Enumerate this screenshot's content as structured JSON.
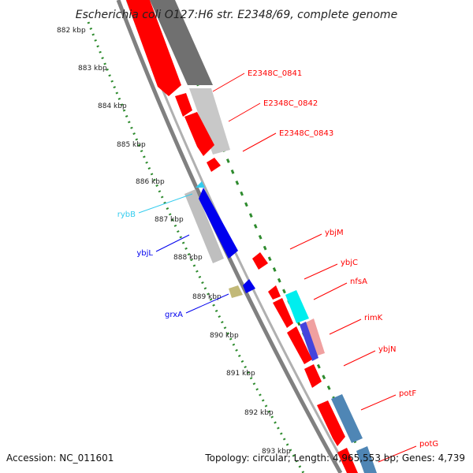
{
  "title": "Escherichia coli O127:H6 str. E2348/69, complete genome",
  "footer": {
    "accession": "Accession: NC_011601",
    "summary": "Topology: circular; Length: 4,965,553 bp; Genes: 4,739"
  },
  "colors": {
    "forward_cds": "#ff0000",
    "reverse_cds": "#0000ee",
    "ncrna": "#33ccee",
    "backbone": "#808080",
    "tick": "#2e8b2e",
    "grey_block": "#bfbfbf",
    "dark_grey_block": "#707070",
    "steel_block": "#4f86b5",
    "cyan_block": "#00eeee",
    "olive_block": "#c2b978"
  },
  "ruler": [
    {
      "label": "882 kbp",
      "kbp": 882
    },
    {
      "label": "883 kbp",
      "kbp": 883
    },
    {
      "label": "884 kbp",
      "kbp": 884
    },
    {
      "label": "885 kbp",
      "kbp": 885
    },
    {
      "label": "886 kbp",
      "kbp": 886
    },
    {
      "label": "887 kbp",
      "kbp": 887
    },
    {
      "label": "888 kbp",
      "kbp": 888
    },
    {
      "label": "889 kbp",
      "kbp": 889
    },
    {
      "label": "890 kbp",
      "kbp": 890
    },
    {
      "label": "891 kbp",
      "kbp": 891
    },
    {
      "label": "892 kbp",
      "kbp": 892
    },
    {
      "label": "893 kbp",
      "kbp": 893
    }
  ],
  "gene_labels": [
    {
      "name": "E2348C_0841",
      "strand": "forward"
    },
    {
      "name": "E2348C_0842",
      "strand": "forward"
    },
    {
      "name": "E2348C_0843",
      "strand": "forward"
    },
    {
      "name": "rybB",
      "strand": "ncrna"
    },
    {
      "name": "ybjL",
      "strand": "reverse"
    },
    {
      "name": "grxA",
      "strand": "reverse"
    },
    {
      "name": "ybjM",
      "strand": "forward"
    },
    {
      "name": "ybjC",
      "strand": "forward"
    },
    {
      "name": "nfsA",
      "strand": "forward"
    },
    {
      "name": "rimK",
      "strand": "forward"
    },
    {
      "name": "ybjN",
      "strand": "forward"
    },
    {
      "name": "potF",
      "strand": "forward"
    },
    {
      "name": "potG",
      "strand": "forward"
    }
  ]
}
